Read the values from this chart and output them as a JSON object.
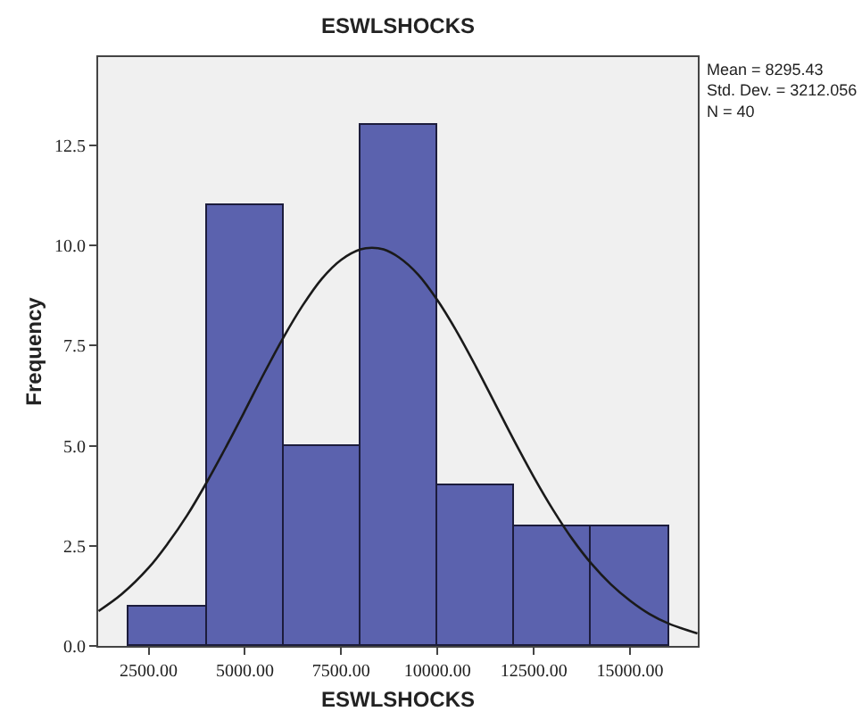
{
  "chart_data": {
    "type": "histogram",
    "title": "ESWLSHOCKS",
    "xlabel": "ESWLSHOCKS",
    "ylabel": "Frequency",
    "bins": [
      2000,
      4000,
      6000,
      8000,
      10000,
      12000,
      14000,
      16000
    ],
    "values": [
      1,
      11,
      5,
      13,
      4,
      3,
      3
    ],
    "color": "#5b62ae",
    "series": [
      {
        "type": "line",
        "color": "#1a1a1a",
        "x": [
          1200,
          1800,
          2500,
          3000,
          3500,
          4000,
          4500,
          5000,
          5500,
          6000,
          6500,
          7000,
          7500,
          8000,
          8300,
          8600,
          9000,
          9500,
          10000,
          10500,
          11000,
          11500,
          12000,
          12500,
          13000,
          13500,
          14000,
          14500,
          15000,
          15500,
          16000,
          16750
        ],
        "values": [
          0.87,
          1.29,
          1.95,
          2.56,
          3.26,
          4.07,
          4.95,
          5.87,
          6.81,
          7.7,
          8.5,
          9.17,
          9.64,
          9.9,
          9.94,
          9.9,
          9.7,
          9.27,
          8.63,
          7.85,
          6.97,
          6.04,
          5.11,
          4.22,
          3.4,
          2.67,
          2.05,
          1.54,
          1.13,
          0.8,
          0.56,
          0.31
        ]
      }
    ],
    "xlim": [
      1190,
      16760
    ],
    "xticks": [
      {
        "value": 2500,
        "label": "2500.00"
      },
      {
        "value": 5000,
        "label": "5000.00"
      },
      {
        "value": 7500,
        "label": "7500.00"
      },
      {
        "value": 10000,
        "label": "10000.00"
      },
      {
        "value": 12500,
        "label": "12500.00"
      },
      {
        "value": 15000,
        "label": "15000.00"
      }
    ],
    "ylim": [
      0,
      14.7
    ],
    "yticks": [
      {
        "value": 0,
        "label": "0.0"
      },
      {
        "value": 2.5,
        "label": "2.5"
      },
      {
        "value": 5,
        "label": "5.0"
      },
      {
        "value": 7.5,
        "label": "7.5"
      },
      {
        "value": 10,
        "label": "10.0"
      },
      {
        "value": 12.5,
        "label": "12.5"
      }
    ],
    "annotations": [
      "Mean = 8295.43\nStd. Dev. = 3212.056\nN = 40"
    ],
    "grid": false
  }
}
